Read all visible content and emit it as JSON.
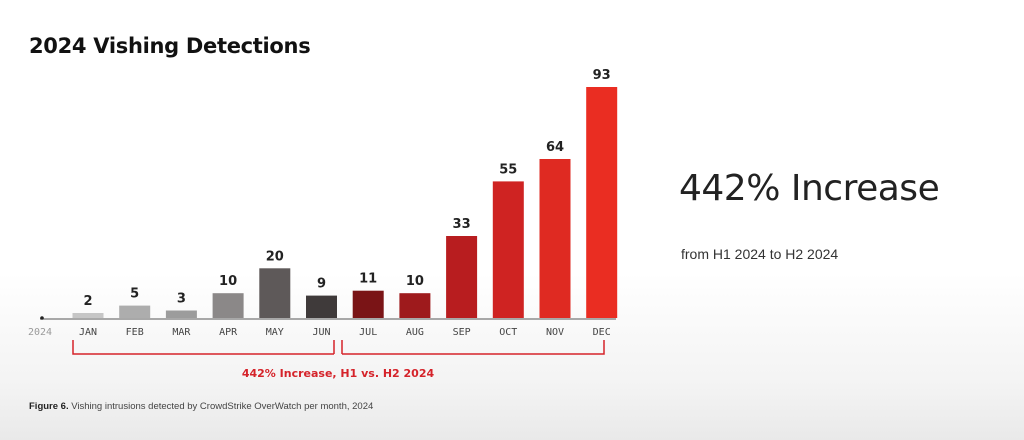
{
  "chart_data": {
    "type": "bar",
    "title": "2024 Vishing Detections",
    "xlabel": "",
    "ylabel": "",
    "year_label": "2024",
    "categories": [
      "JAN",
      "FEB",
      "MAR",
      "APR",
      "MAY",
      "JUN",
      "JUL",
      "AUG",
      "SEP",
      "OCT",
      "NOV",
      "DEC"
    ],
    "values": [
      2,
      5,
      3,
      10,
      20,
      9,
      11,
      10,
      33,
      55,
      64,
      93
    ],
    "bar_colors": [
      "#c6c6c6",
      "#adadad",
      "#9c9c9c",
      "#8b8888",
      "#5e5959",
      "#3f3a3a",
      "#7a1416",
      "#9e1a1c",
      "#b81d1f",
      "#cf2322",
      "#df2a22",
      "#ea2d22"
    ],
    "ylim": [
      0,
      93
    ],
    "grid": false,
    "legend": "none",
    "bracket_label": "442% Increase, H1 vs. H2 2024",
    "bracket_color": "#d5232a"
  },
  "caption": {
    "figure_label": "Figure 6.",
    "text": " Vishing intrusions detected by CrowdStrike OverWatch per month, 2024"
  },
  "side": {
    "headline": "442% Increase",
    "subtitle": "from H1 2024 to H2 2024"
  }
}
